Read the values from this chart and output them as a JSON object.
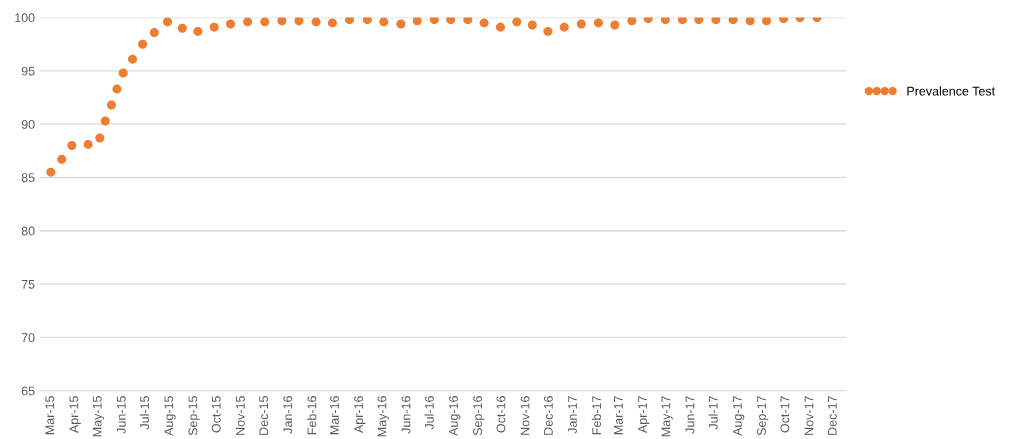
{
  "chart_data": {
    "type": "scatter",
    "marker": "circle",
    "grid": "y",
    "legend": "right",
    "xlim": [
      "2015-03-01",
      "2017-12-31"
    ],
    "xticks": [
      {
        "value": "2015-03-15",
        "label": "Mar-15"
      },
      {
        "value": "2015-04-15",
        "label": "Apr-15"
      },
      {
        "value": "2015-05-15",
        "label": "May-15"
      },
      {
        "value": "2015-06-15",
        "label": "Jun-15"
      },
      {
        "value": "2015-07-15",
        "label": "Jul-15"
      },
      {
        "value": "2015-08-15",
        "label": "Aug-15"
      },
      {
        "value": "2015-09-15",
        "label": "Sep-15"
      },
      {
        "value": "2015-10-15",
        "label": "Oct-15"
      },
      {
        "value": "2015-11-15",
        "label": "Nov-15"
      },
      {
        "value": "2015-12-15",
        "label": "Dec-15"
      },
      {
        "value": "2016-01-15",
        "label": "Jan-16"
      },
      {
        "value": "2016-02-15",
        "label": "Feb-16"
      },
      {
        "value": "2016-03-15",
        "label": "Mar-16"
      },
      {
        "value": "2016-04-15",
        "label": "Apr-16"
      },
      {
        "value": "2016-05-15",
        "label": "May-16"
      },
      {
        "value": "2016-06-15",
        "label": "Jun-16"
      },
      {
        "value": "2016-07-15",
        "label": "Jul-16"
      },
      {
        "value": "2016-08-15",
        "label": "Aug-16"
      },
      {
        "value": "2016-09-15",
        "label": "Sep-16"
      },
      {
        "value": "2016-10-15",
        "label": "Oct-16"
      },
      {
        "value": "2016-11-15",
        "label": "Nov-16"
      },
      {
        "value": "2016-12-15",
        "label": "Dec-16"
      },
      {
        "value": "2017-01-15",
        "label": "Jan-17"
      },
      {
        "value": "2017-02-15",
        "label": "Feb-17"
      },
      {
        "value": "2017-03-15",
        "label": "Mar-17"
      },
      {
        "value": "2017-04-15",
        "label": "Apr-17"
      },
      {
        "value": "2017-05-15",
        "label": "May-17"
      },
      {
        "value": "2017-06-15",
        "label": "Jun-17"
      },
      {
        "value": "2017-07-15",
        "label": "Jul-17"
      },
      {
        "value": "2017-08-15",
        "label": "Aug-17"
      },
      {
        "value": "2017-09-15",
        "label": "Sep-17"
      },
      {
        "value": "2017-10-15",
        "label": "Oct-17"
      },
      {
        "value": "2017-11-15",
        "label": "Nov-17"
      },
      {
        "value": "2017-12-15",
        "label": "Dec-17"
      }
    ],
    "ylim": [
      65,
      100
    ],
    "yticks": [
      65,
      70,
      75,
      80,
      85,
      90,
      95,
      100
    ],
    "series": [
      {
        "name": "Prevalence Test",
        "color": "#ed7d31",
        "x": [
          "2015-03-15",
          "2015-03-29",
          "2015-04-11",
          "2015-05-02",
          "2015-05-17",
          "2015-05-24",
          "2015-06-01",
          "2015-06-08",
          "2015-06-16",
          "2015-06-28",
          "2015-07-11",
          "2015-07-26",
          "2015-08-12",
          "2015-08-31",
          "2015-09-20",
          "2015-10-11",
          "2015-11-01",
          "2015-11-23",
          "2015-12-15",
          "2016-01-06",
          "2016-01-28",
          "2016-02-19",
          "2016-03-11",
          "2016-04-02",
          "2016-04-25",
          "2016-05-16",
          "2016-06-07",
          "2016-06-28",
          "2016-07-20",
          "2016-08-10",
          "2016-09-01",
          "2016-09-22",
          "2016-10-13",
          "2016-11-03",
          "2016-11-23",
          "2016-12-13",
          "2017-01-03",
          "2017-01-25",
          "2017-02-16",
          "2017-03-09",
          "2017-03-31",
          "2017-04-21",
          "2017-05-13",
          "2017-06-04",
          "2017-06-25",
          "2017-07-17",
          "2017-08-08",
          "2017-08-30",
          "2017-09-20",
          "2017-10-12",
          "2017-11-02",
          "2017-11-24"
        ],
        "values": [
          85.5,
          86.7,
          88.0,
          88.1,
          88.7,
          90.3,
          91.8,
          93.3,
          94.8,
          96.1,
          97.5,
          98.6,
          99.6,
          99.0,
          98.7,
          99.1,
          99.4,
          99.6,
          99.6,
          99.7,
          99.7,
          99.6,
          99.5,
          99.8,
          99.8,
          99.6,
          99.4,
          99.7,
          99.8,
          99.8,
          99.8,
          99.5,
          99.1,
          99.6,
          99.3,
          98.7,
          99.1,
          99.4,
          99.5,
          99.3,
          99.7,
          99.9,
          99.8,
          99.8,
          99.8,
          99.8,
          99.8,
          99.7,
          99.7,
          99.9,
          100.0,
          100.0
        ]
      }
    ]
  }
}
